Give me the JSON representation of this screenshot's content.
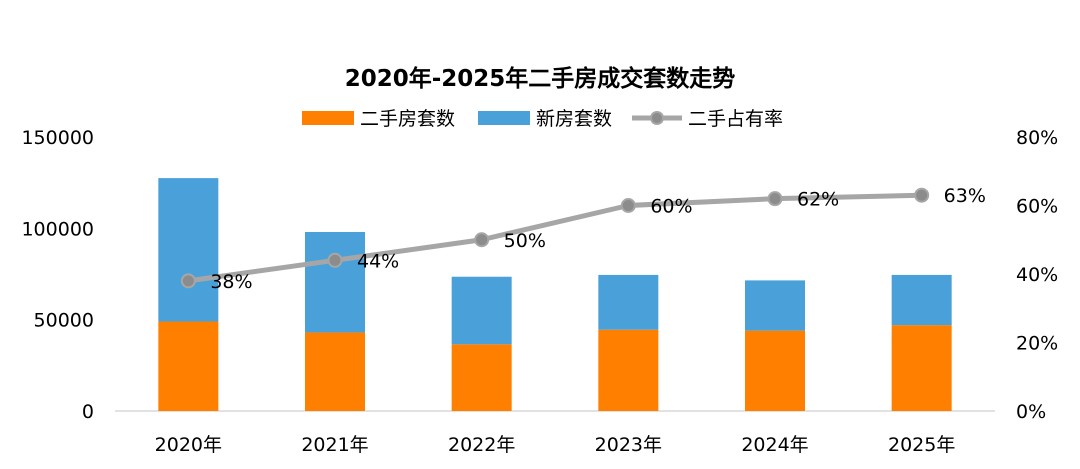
{
  "chart_data": {
    "type": "bar",
    "title": "2020年-2025年二手房成交套数走势",
    "categories": [
      "2020年",
      "2021年",
      "2022年",
      "2023年",
      "2024年",
      "2025年"
    ],
    "series": [
      {
        "name": "二手房套数",
        "kind": "stacked-bar",
        "axis": "left",
        "color": "#ff7f00",
        "values": [
          49000,
          43000,
          36500,
          44500,
          44000,
          47000
        ]
      },
      {
        "name": "新房套数",
        "kind": "stacked-bar",
        "axis": "left",
        "color": "#4aa1da",
        "values": [
          78500,
          55000,
          37000,
          30000,
          27500,
          27500
        ]
      },
      {
        "name": "二手占有率",
        "kind": "line",
        "axis": "right",
        "color": "#a6a6a6",
        "values": [
          38,
          44,
          50,
          60,
          62,
          63
        ],
        "labels": [
          "38%",
          "44%",
          "50%",
          "60%",
          "62%",
          "63%"
        ]
      }
    ],
    "y_left": {
      "min": 0,
      "max": 150000,
      "ticks": [
        "0",
        "50000",
        "100000",
        "150000"
      ]
    },
    "y_right": {
      "min": 0,
      "max": 80,
      "ticks": [
        "0%",
        "20%",
        "40%",
        "60%",
        "80%"
      ]
    },
    "legend_position": "top-center",
    "grid": false
  }
}
